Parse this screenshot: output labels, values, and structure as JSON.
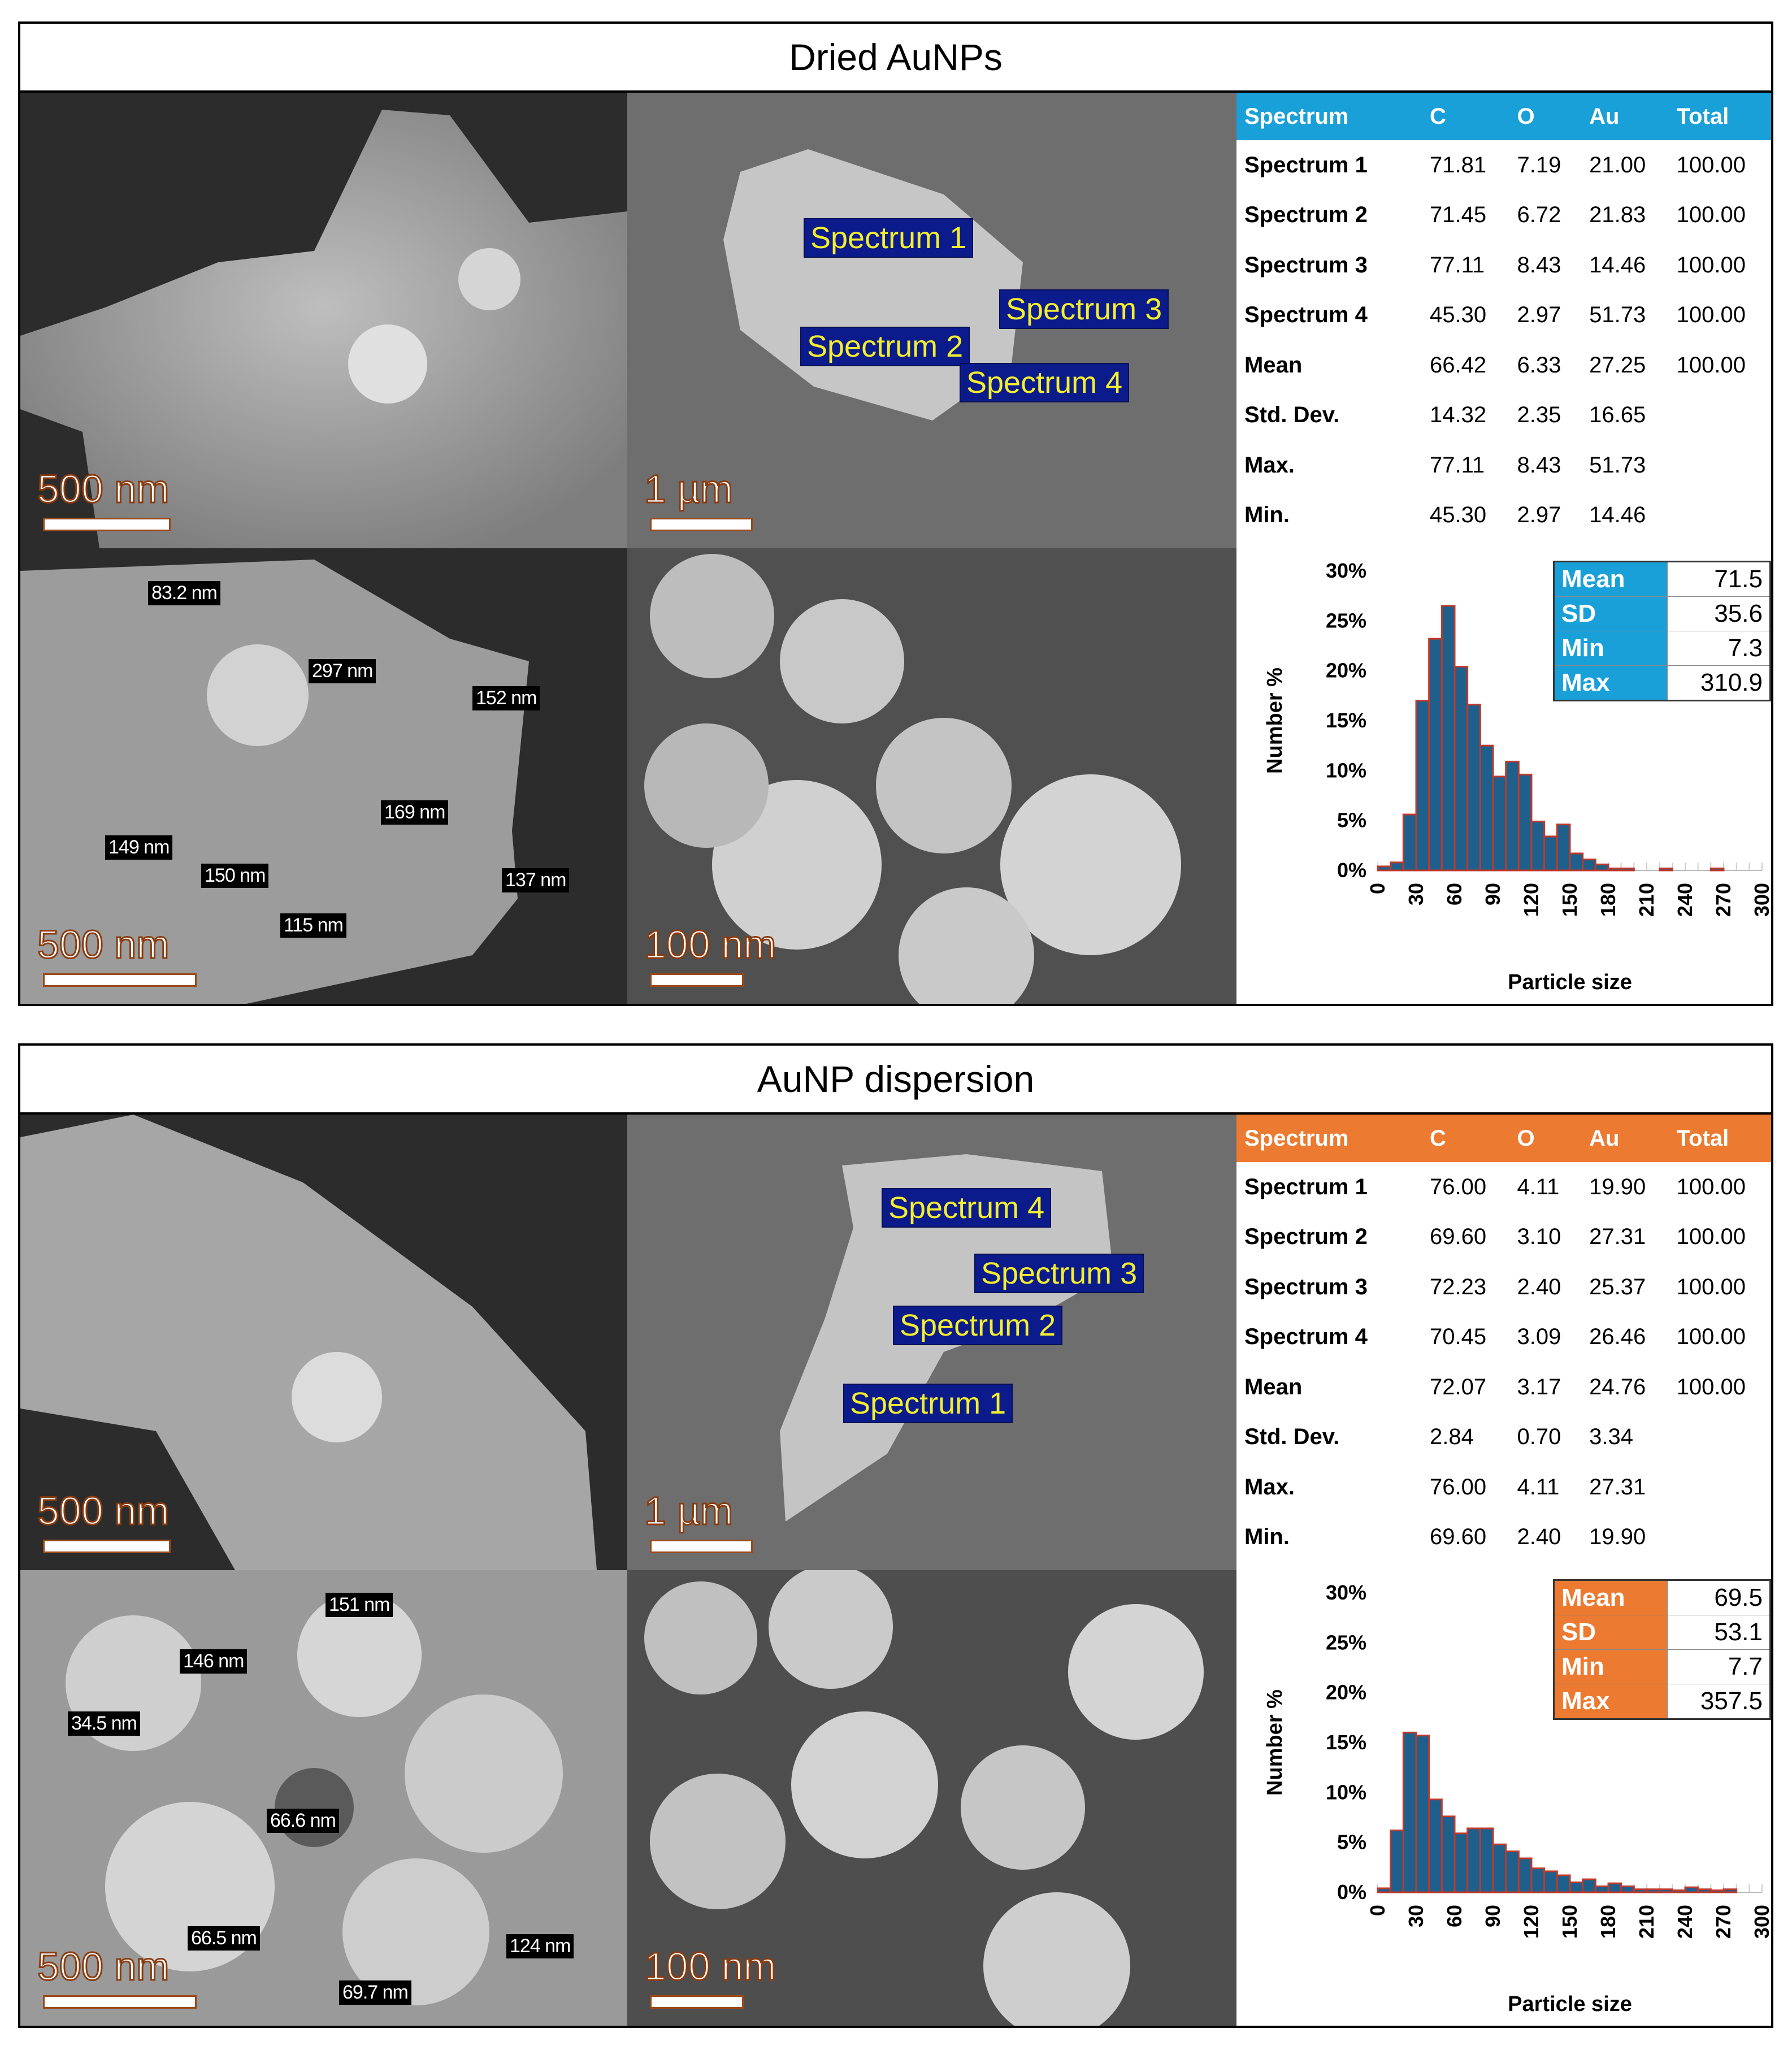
{
  "panels": [
    {
      "title": "Dried AuNPs",
      "accent": "#1aa0d8",
      "images": {
        "top_left_scale": "500 nm",
        "top_mid_scale": "1 µm",
        "bottom_left_scale": "500 nm",
        "bottom_mid_scale": "100 nm",
        "spectrum_tags": [
          "Spectrum 1",
          "Spectrum 2",
          "Spectrum 3",
          "Spectrum 4"
        ],
        "measurements": [
          "83.2 nm",
          "297 nm",
          "152 nm",
          "169 nm",
          "149 nm",
          "150 nm",
          "115 nm",
          "137 nm"
        ]
      },
      "table": {
        "headers": [
          "Spectrum",
          "C",
          "O",
          "Au",
          "Total"
        ],
        "rows": [
          [
            "Spectrum 1",
            "71.81",
            "7.19",
            "21.00",
            "100.00"
          ],
          [
            "Spectrum 2",
            "71.45",
            "6.72",
            "21.83",
            "100.00"
          ],
          [
            "Spectrum 3",
            "77.11",
            "8.43",
            "14.46",
            "100.00"
          ],
          [
            "Spectrum 4",
            "45.30",
            "2.97",
            "51.73",
            "100.00"
          ],
          [
            "Mean",
            "66.42",
            "6.33",
            "27.25",
            "100.00"
          ],
          [
            "Std. Dev.",
            "14.32",
            "2.35",
            "16.65",
            ""
          ],
          [
            "Max.",
            "77.11",
            "8.43",
            "51.73",
            ""
          ],
          [
            "Min.",
            "45.30",
            "2.97",
            "14.46",
            ""
          ]
        ]
      },
      "stats": [
        [
          "Mean",
          "71.5"
        ],
        [
          "SD",
          "35.6"
        ],
        [
          "Min",
          "7.3"
        ],
        [
          "Max",
          "310.9"
        ]
      ]
    },
    {
      "title": "AuNP dispersion",
      "accent": "#ec7a30",
      "images": {
        "top_left_scale": "500 nm",
        "top_mid_scale": "1 µm",
        "bottom_left_scale": "500 nm",
        "bottom_mid_scale": "100 nm",
        "spectrum_tags": [
          "Spectrum 4",
          "Spectrum 3",
          "Spectrum 2",
          "Spectrum 1"
        ],
        "measurements": [
          "151 nm",
          "146 nm",
          "34.5 nm",
          "66.6 nm",
          "66.5 nm",
          "124 nm",
          "69.7 nm"
        ]
      },
      "table": {
        "headers": [
          "Spectrum",
          "C",
          "O",
          "Au",
          "Total"
        ],
        "rows": [
          [
            "Spectrum 1",
            "76.00",
            "4.11",
            "19.90",
            "100.00"
          ],
          [
            "Spectrum 2",
            "69.60",
            "3.10",
            "27.31",
            "100.00"
          ],
          [
            "Spectrum 3",
            "72.23",
            "2.40",
            "25.37",
            "100.00"
          ],
          [
            "Spectrum 4",
            "70.45",
            "3.09",
            "26.46",
            "100.00"
          ],
          [
            "Mean",
            "72.07",
            "3.17",
            "24.76",
            "100.00"
          ],
          [
            "Std. Dev.",
            "2.84",
            "0.70",
            "3.34",
            ""
          ],
          [
            "Max.",
            "76.00",
            "4.11",
            "27.31",
            ""
          ],
          [
            "Min.",
            "69.60",
            "2.40",
            "19.90",
            ""
          ]
        ]
      },
      "stats": [
        [
          "Mean",
          "69.5"
        ],
        [
          "SD",
          "53.1"
        ],
        [
          "Min",
          "7.7"
        ],
        [
          "Max",
          "357.5"
        ]
      ]
    }
  ],
  "chart_data": [
    {
      "type": "bar",
      "xlabel": "Particle size",
      "ylabel": "Number %",
      "ylim": [
        0,
        30
      ],
      "xlim": [
        0,
        300
      ],
      "xticks": [
        "0",
        "30",
        "60",
        "90",
        "120",
        "150",
        "180",
        "210",
        "240",
        "270",
        "300"
      ],
      "yticks": [
        "0%",
        "5%",
        "10%",
        "15%",
        "20%",
        "25%",
        "30%"
      ],
      "bin_width": 10,
      "bin_starts": [
        0,
        10,
        20,
        30,
        40,
        50,
        60,
        70,
        80,
        90,
        100,
        110,
        120,
        130,
        140,
        150,
        160,
        170,
        180,
        190,
        200,
        210,
        220,
        230,
        240,
        250,
        260,
        270,
        280,
        290
      ],
      "values": [
        0.4,
        0.8,
        5.6,
        17.0,
        23.2,
        26.5,
        20.4,
        16.6,
        12.5,
        9.4,
        10.9,
        9.6,
        4.9,
        3.4,
        4.6,
        1.7,
        1.1,
        0.6,
        0.2,
        0.2,
        0,
        0,
        0.2,
        0,
        0,
        0,
        0.2,
        0,
        0,
        0
      ],
      "bar_color": "#1f5f8b",
      "edge_color": "#c0392b"
    },
    {
      "type": "bar",
      "xlabel": "Particle size",
      "ylabel": "Number %",
      "ylim": [
        0,
        30
      ],
      "xlim": [
        0,
        300
      ],
      "xticks": [
        "0",
        "30",
        "60",
        "90",
        "120",
        "150",
        "180",
        "210",
        "240",
        "270",
        "300"
      ],
      "yticks": [
        "0%",
        "5%",
        "10%",
        "15%",
        "20%",
        "25%",
        "30%"
      ],
      "bin_width": 10,
      "bin_starts": [
        0,
        10,
        20,
        30,
        40,
        50,
        60,
        70,
        80,
        90,
        100,
        110,
        120,
        130,
        140,
        150,
        160,
        170,
        180,
        190,
        200,
        210,
        220,
        230,
        240,
        250,
        260,
        270,
        280,
        290
      ],
      "values": [
        0.4,
        6.2,
        16.0,
        15.7,
        9.3,
        7.6,
        5.9,
        6.4,
        6.4,
        4.8,
        4.1,
        3.4,
        2.4,
        2.1,
        1.7,
        1.0,
        1.3,
        0.6,
        0.9,
        0.6,
        0.3,
        0.3,
        0.3,
        0.2,
        0.5,
        0.3,
        0.2,
        0.3,
        0,
        0
      ],
      "bar_color": "#1f5f8b",
      "edge_color": "#c0392b"
    }
  ]
}
